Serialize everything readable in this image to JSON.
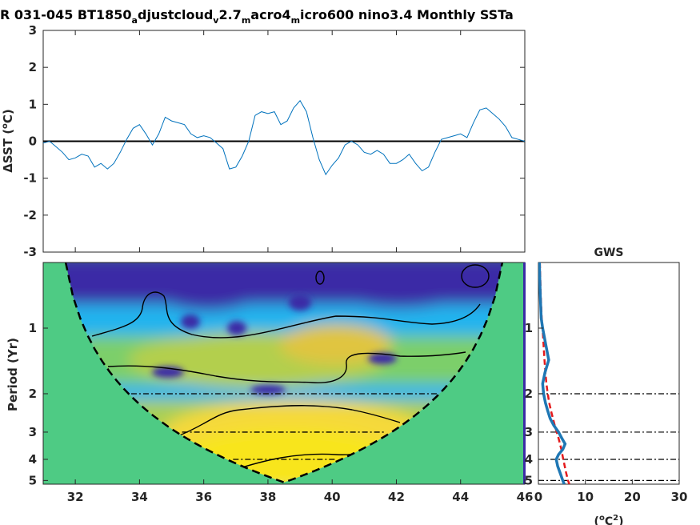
{
  "figure": {
    "title_main": "R 031-045 BT1850",
    "title_sub1": "a",
    "title_mid1": "djustcloud",
    "title_sub2": "v",
    "title_mid2": "2.7",
    "title_sub3": "m",
    "title_mid3": "acro4",
    "title_sub4": "m",
    "title_tail": "icro600 nino3.4 Monthly SSTa",
    "colors": {
      "series": "#0072BD",
      "gws_solid": "#1f77b4",
      "gws_dashed": "#e41a1c",
      "coi_fill": "#4ecb84",
      "low_power": "#3b2ba6",
      "mid_power": "#22b4ee",
      "high_power": "#f8e51a"
    }
  },
  "chart_data": [
    {
      "type": "line",
      "name": "timeseries",
      "ylabel_delta": "Δ",
      "ylabel_text": "SST (",
      "ylabel_sup": "o",
      "ylabel_tail": "C)",
      "xlim": [
        31,
        46
      ],
      "ylim": [
        -3,
        3
      ],
      "yticks": [
        -3,
        -2,
        -1,
        0,
        1,
        2,
        3
      ],
      "xticks": [
        32,
        34,
        36,
        38,
        40,
        42,
        44,
        46
      ],
      "x": [
        31.0,
        31.2,
        31.4,
        31.6,
        31.8,
        32.0,
        32.2,
        32.4,
        32.6,
        32.8,
        33.0,
        33.2,
        33.4,
        33.6,
        33.8,
        34.0,
        34.2,
        34.4,
        34.6,
        34.8,
        35.0,
        35.2,
        35.4,
        35.6,
        35.8,
        36.0,
        36.2,
        36.4,
        36.6,
        36.8,
        37.0,
        37.2,
        37.4,
        37.6,
        37.8,
        38.0,
        38.2,
        38.4,
        38.6,
        38.8,
        39.0,
        39.2,
        39.4,
        39.6,
        39.8,
        40.0,
        40.2,
        40.4,
        40.6,
        40.8,
        41.0,
        41.2,
        41.4,
        41.6,
        41.8,
        42.0,
        42.2,
        42.4,
        42.6,
        42.8,
        43.0,
        43.2,
        43.4,
        43.6,
        43.8,
        44.0,
        44.2,
        44.4,
        44.6,
        44.8,
        45.0,
        45.2,
        45.4,
        45.6,
        45.8,
        46.0
      ],
      "y": [
        -0.05,
        0.0,
        -0.15,
        -0.3,
        -0.5,
        -0.45,
        -0.35,
        -0.4,
        -0.7,
        -0.6,
        -0.75,
        -0.6,
        -0.3,
        0.05,
        0.35,
        0.45,
        0.2,
        -0.1,
        0.2,
        0.65,
        0.55,
        0.5,
        0.45,
        0.2,
        0.1,
        0.15,
        0.1,
        -0.05,
        -0.2,
        -0.75,
        -0.7,
        -0.4,
        0.0,
        0.7,
        0.8,
        0.75,
        0.8,
        0.45,
        0.55,
        0.9,
        1.1,
        0.8,
        0.1,
        -0.5,
        -0.9,
        -0.65,
        -0.45,
        -0.1,
        0.0,
        -0.1,
        -0.3,
        -0.35,
        -0.25,
        -0.35,
        -0.6,
        -0.6,
        -0.5,
        -0.35,
        -0.6,
        -0.8,
        -0.7,
        -0.3,
        0.05,
        0.1,
        0.15,
        0.2,
        0.1,
        0.5,
        0.85,
        0.9,
        0.75,
        0.6,
        0.4,
        0.1,
        0.05,
        0.0
      ]
    },
    {
      "type": "heatmap",
      "name": "wavelet-power",
      "ylabel": "Period (Yr)",
      "xlim": [
        31,
        46
      ],
      "period_ticks": [
        1,
        2,
        3,
        4,
        5
      ],
      "period_range": [
        0.5,
        5.2
      ],
      "xticks": [
        32,
        34,
        36,
        38,
        40,
        42,
        44,
        46
      ],
      "significance_lines": [
        2,
        3,
        4,
        5
      ]
    },
    {
      "type": "line",
      "name": "global-wavelet-spectrum",
      "title": "GWS",
      "xlabel_pre": "(",
      "xlabel_sup1": "o",
      "xlabel_mid": "C",
      "xlabel_sup2": "2",
      "xlabel_post": ")",
      "xlim": [
        0,
        30
      ],
      "xticks": [
        0,
        10,
        20,
        30
      ],
      "period_ticks": [
        1,
        2,
        3,
        4,
        5
      ],
      "periods": [
        0.5,
        0.7,
        0.9,
        1.0,
        1.2,
        1.4,
        1.6,
        1.8,
        2.0,
        2.2,
        2.4,
        2.6,
        2.8,
        3.0,
        3.2,
        3.4,
        3.6,
        3.8,
        4.0,
        4.3,
        4.6,
        5.0,
        5.2
      ],
      "power_solid": [
        0.2,
        0.4,
        0.6,
        0.9,
        1.6,
        2.2,
        1.4,
        0.9,
        1.1,
        1.5,
        2.0,
        2.5,
        3.3,
        4.3,
        5.0,
        5.7,
        5.2,
        4.3,
        3.8,
        4.1,
        4.6,
        5.2,
        5.5
      ],
      "power_dashed": [
        0.3,
        0.5,
        0.7,
        0.9,
        1.1,
        1.3,
        1.5,
        1.7,
        2.0,
        2.3,
        2.7,
        3.1,
        3.5,
        3.9,
        4.3,
        4.6,
        4.9,
        5.1,
        5.3,
        5.6,
        5.9,
        6.3,
        6.6
      ]
    }
  ]
}
